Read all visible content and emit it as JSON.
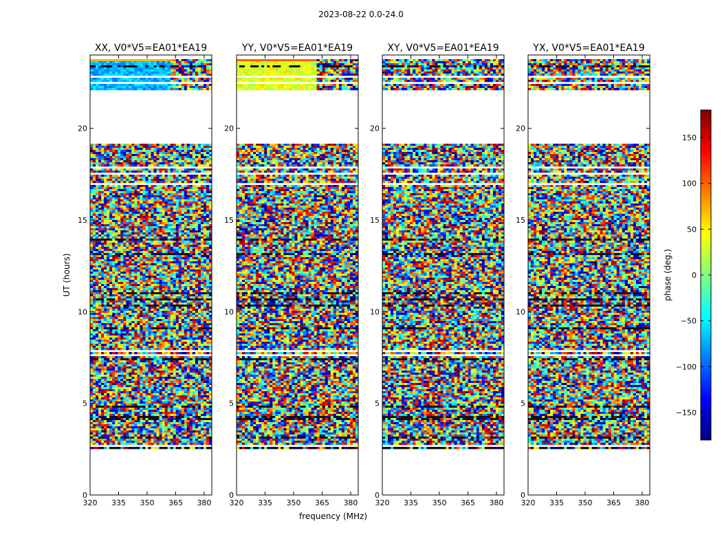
{
  "title": "2023-08-22 0.0-24.0",
  "chart_data": {
    "type": "heatmap",
    "title": "2023-08-22 0.0-24.0",
    "xlabel": "frequency (MHz)",
    "ylabel": "UT (hours)",
    "xlim": [
      320,
      384
    ],
    "ylim": [
      0,
      24
    ],
    "xticks": [
      320,
      335,
      350,
      365,
      380
    ],
    "yticks": [
      0,
      5,
      10,
      15,
      20
    ],
    "data_time_range": [
      2.55,
      24
    ],
    "data_gaps": [
      [
        19.2,
        22.0
      ]
    ],
    "colormap": "jet",
    "colorbar": {
      "label": "phase (deg.)",
      "range": [
        -180,
        180
      ],
      "ticks": [
        -150,
        -100,
        -50,
        0,
        50,
        100,
        150
      ],
      "tick_labels": [
        "−150",
        "−100",
        "−50",
        "0",
        "50",
        "100",
        "150"
      ]
    },
    "panels": [
      {
        "name": "XX",
        "title": "XX, V0*V5=EA01*EA19"
      },
      {
        "name": "YY",
        "title": "YY, V0*V5=EA01*EA19"
      },
      {
        "name": "XY",
        "title": "XY, V0*V5=EA01*EA19"
      },
      {
        "name": "YX",
        "title": "YX, V0*V5=EA01*EA19"
      }
    ]
  }
}
